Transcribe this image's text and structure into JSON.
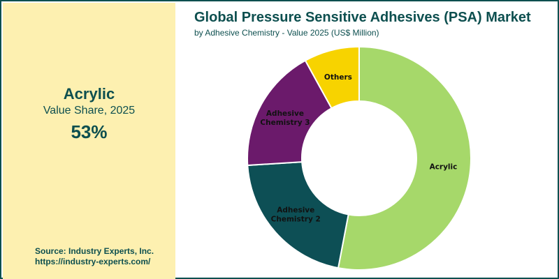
{
  "highlight": {
    "name": "Acrylic",
    "subtitle": "Value Share, 2025",
    "value": "53%"
  },
  "source": {
    "name": "Source: Industry Experts, Inc.",
    "url": "https://industry-experts.com/"
  },
  "chart_data": {
    "type": "pie",
    "title": "Global Pressure Sensitive Adhesives (PSA) Market",
    "subtitle": "by Adhesive Chemistry - Value 2025 (US$ Million)",
    "donut": true,
    "slices": [
      {
        "label": "Acrylic",
        "share": 53,
        "color": "#a6d86a",
        "text_color": "#111111"
      },
      {
        "label": "Adhesive Chemistry 2",
        "label_lines": [
          "Adhesive",
          "Chemistry 2"
        ],
        "share": 21,
        "color": "#0d4f55",
        "text_color": "#111111"
      },
      {
        "label": "Adhesive Chemistry 3",
        "label_lines": [
          "Adhesive",
          "Chemistry 3"
        ],
        "share": 18,
        "color": "#6b1a6b",
        "text_color": "#111111"
      },
      {
        "label": "Others",
        "share": 8,
        "color": "#f7d300",
        "text_color": "#111111"
      }
    ]
  }
}
